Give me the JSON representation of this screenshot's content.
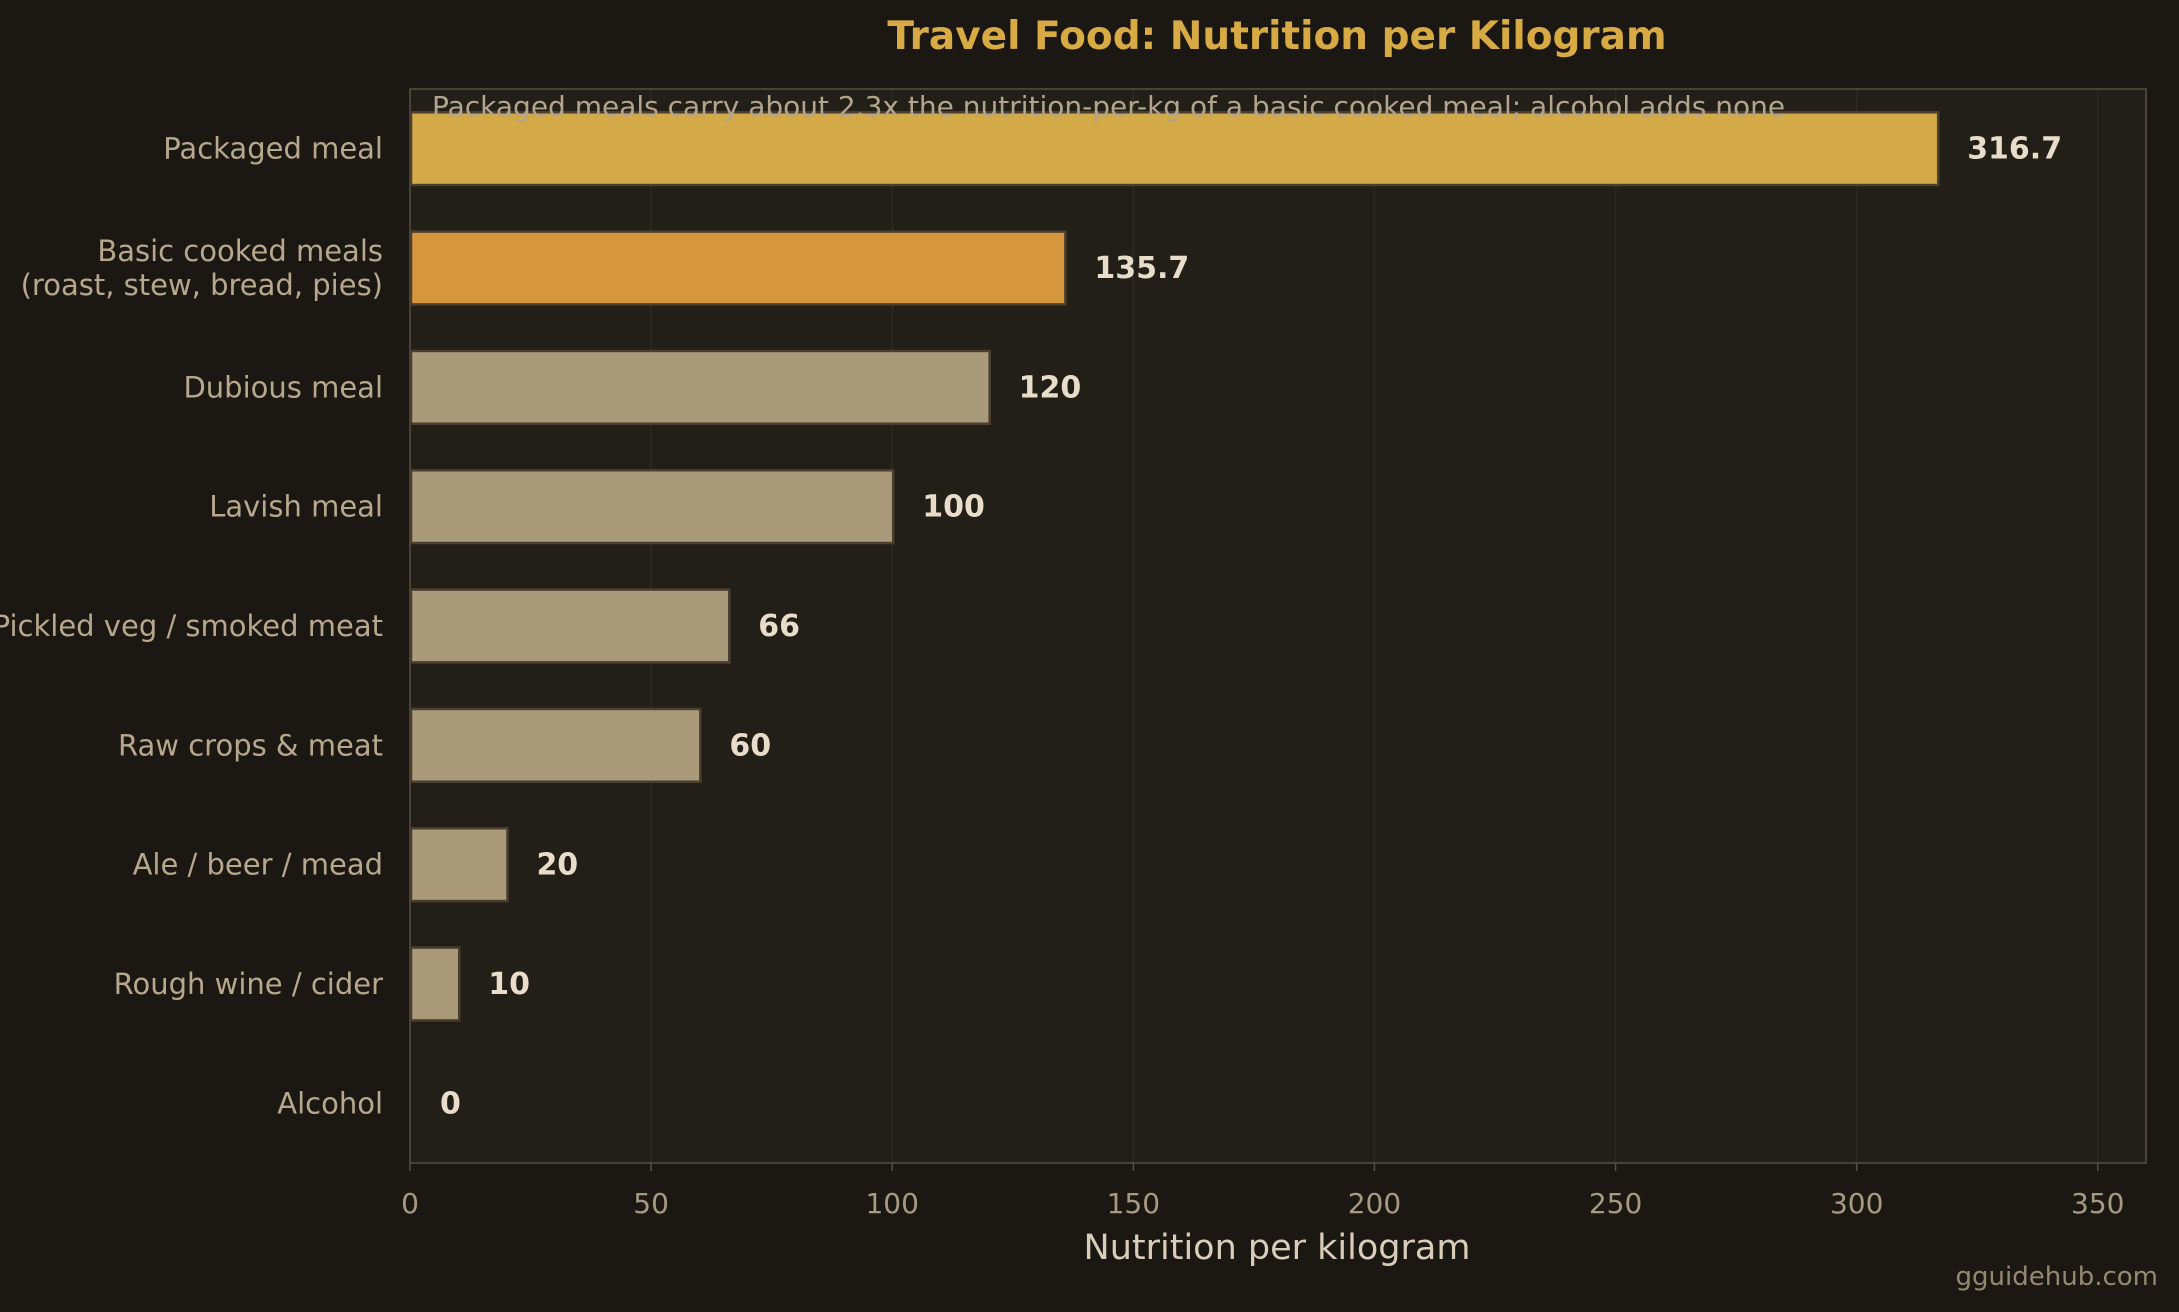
{
  "chart_data": {
    "type": "bar",
    "orientation": "horizontal",
    "title": "Travel Food: Nutrition per Kilogram",
    "annotation": "Packaged meals carry about 2.3x the nutrition-per-kg of a basic cooked meal; alcohol adds none",
    "xlabel": "Nutrition per kilogram",
    "ylabel": "",
    "xlim": [
      0,
      360
    ],
    "xticks": [
      0,
      50,
      100,
      150,
      200,
      250,
      300,
      350
    ],
    "grid": "vertical",
    "categories": [
      [
        "Packaged meal"
      ],
      [
        "Basic cooked meals",
        "(roast, stew, bread, pies)"
      ],
      [
        "Dubious meal"
      ],
      [
        "Lavish meal"
      ],
      [
        "Pickled veg / smoked meat"
      ],
      [
        "Raw crops & meat"
      ],
      [
        "Ale / beer / mead"
      ],
      [
        "Rough wine / cider"
      ],
      [
        "Alcohol"
      ]
    ],
    "values": [
      316.7,
      135.7,
      120,
      100,
      66,
      60,
      20,
      10,
      0
    ],
    "value_labels": [
      "316.7",
      "135.7",
      "120",
      "100",
      "66",
      "60",
      "20",
      "10",
      "0"
    ],
    "bar_colors": [
      "#d4aa48",
      "#d5963e",
      "#a99a7a",
      "#a99a7a",
      "#a99a7a",
      "#a99a7a",
      "#a99a7a",
      "#a99a7a",
      "#a99a7a"
    ]
  },
  "watermark": "gguidehub.com"
}
